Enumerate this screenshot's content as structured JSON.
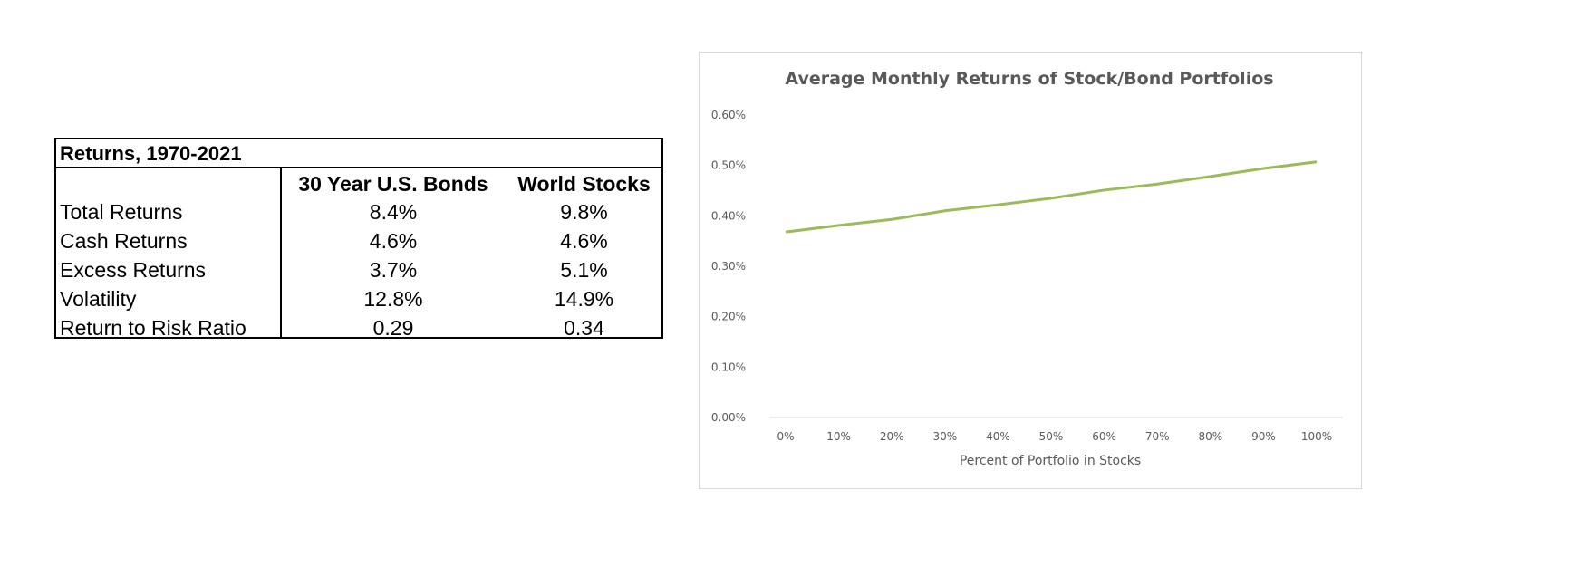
{
  "table": {
    "title": "Returns, 1970-2021",
    "columns": [
      "",
      "30 Year U.S. Bonds",
      "World Stocks"
    ],
    "rows": [
      [
        "Total Returns",
        "8.4%",
        "9.8%"
      ],
      [
        "Cash Returns",
        "4.6%",
        "4.6%"
      ],
      [
        "Excess Returns",
        "3.7%",
        "5.1%"
      ],
      [
        "Volatility",
        "12.8%",
        "14.9%"
      ],
      [
        "Return to Risk Ratio",
        "0.29",
        "0.34"
      ]
    ]
  },
  "chart_data": {
    "type": "line",
    "title": "Average Monthly Returns of Stock/Bond Portfolios",
    "xlabel": "Percent of Portfolio in Stocks",
    "ylabel": "",
    "categories": [
      "0%",
      "10%",
      "20%",
      "30%",
      "40%",
      "50%",
      "60%",
      "70%",
      "80%",
      "90%",
      "100%"
    ],
    "values": [
      0.368,
      0.381,
      0.393,
      0.41,
      0.422,
      0.435,
      0.451,
      0.463,
      0.478,
      0.494,
      0.507
    ],
    "ylim": [
      0,
      0.6
    ],
    "yticks": [
      "0.00%",
      "0.10%",
      "0.20%",
      "0.30%",
      "0.40%",
      "0.50%",
      "0.60%"
    ],
    "grid": false,
    "legend": "none",
    "line_color": "#9bbb59"
  }
}
